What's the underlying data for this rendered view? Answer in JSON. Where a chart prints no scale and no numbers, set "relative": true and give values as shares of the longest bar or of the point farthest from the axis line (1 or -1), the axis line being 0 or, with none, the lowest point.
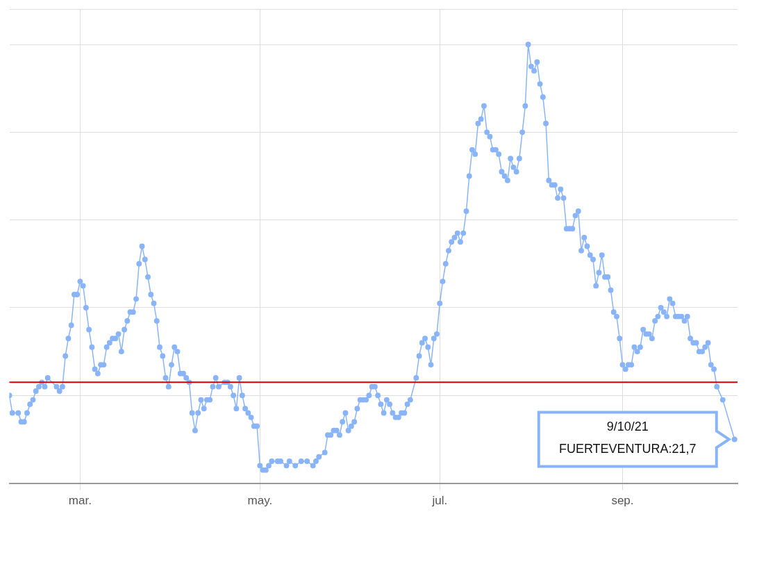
{
  "chart_data": {
    "type": "line",
    "relative": true,
    "grid": true,
    "marker": "circle",
    "line_style": "solid",
    "xlim": [
      "--02-05",
      "--10-10"
    ],
    "xticks": [
      {
        "value": "--03-01",
        "label": "mar."
      },
      {
        "value": "--05-01",
        "label": "may."
      },
      {
        "value": "--07-01",
        "label": "jul."
      },
      {
        "value": "--09-01",
        "label": "sep."
      }
    ],
    "ref_lines": [
      {
        "axis": "y",
        "value": 0.23,
        "color": "#cc0000"
      }
    ],
    "annotations": [
      "9/10/21",
      "FUERTEVENTURA:21,7"
    ],
    "series": [
      {
        "color": "#8ab4f8",
        "x": [
          "--02-05",
          "--02-06",
          "--02-08",
          "--02-09",
          "--02-10",
          "--02-11",
          "--02-12",
          "--02-13",
          "--02-14",
          "--02-15",
          "--02-16",
          "--02-17",
          "--02-18",
          "--02-21",
          "--02-22",
          "--02-23",
          "--02-24",
          "--02-25",
          "--02-26",
          "--02-27",
          "--02-28",
          "--03-01",
          "--03-02",
          "--03-03",
          "--03-04",
          "--03-05",
          "--03-06",
          "--03-07",
          "--03-08",
          "--03-09",
          "--03-10",
          "--03-11",
          "--03-12",
          "--03-13",
          "--03-14",
          "--03-15",
          "--03-16",
          "--03-17",
          "--03-18",
          "--03-19",
          "--03-20",
          "--03-21",
          "--03-22",
          "--03-23",
          "--03-24",
          "--03-25",
          "--03-26",
          "--03-27",
          "--03-28",
          "--03-29",
          "--03-30",
          "--03-31",
          "--04-01",
          "--04-02",
          "--04-03",
          "--04-04",
          "--04-05",
          "--04-06",
          "--04-07",
          "--04-08",
          "--04-09",
          "--04-10",
          "--04-11",
          "--04-12",
          "--04-13",
          "--04-14",
          "--04-15",
          "--04-16",
          "--04-17",
          "--04-19",
          "--04-20",
          "--04-21",
          "--04-22",
          "--04-23",
          "--04-24",
          "--04-25",
          "--04-26",
          "--04-27",
          "--04-28",
          "--04-29",
          "--04-30",
          "--05-01",
          "--05-02",
          "--05-03",
          "--05-04",
          "--05-05",
          "--05-07",
          "--05-08",
          "--05-10",
          "--05-11",
          "--05-13",
          "--05-15",
          "--05-17",
          "--05-19",
          "--05-20",
          "--05-21",
          "--05-23",
          "--05-24",
          "--05-25",
          "--05-26",
          "--05-27",
          "--05-28",
          "--05-29",
          "--05-30",
          "--05-31",
          "--06-01",
          "--06-02",
          "--06-03",
          "--06-04",
          "--06-05",
          "--06-06",
          "--06-07",
          "--06-08",
          "--06-09",
          "--06-10",
          "--06-11",
          "--06-12",
          "--06-13",
          "--06-14",
          "--06-15",
          "--06-16",
          "--06-17",
          "--06-18",
          "--06-19",
          "--06-20",
          "--06-21",
          "--06-23",
          "--06-24",
          "--06-25",
          "--06-26",
          "--06-27",
          "--06-28",
          "--06-29",
          "--06-30",
          "--07-01",
          "--07-02",
          "--07-03",
          "--07-04",
          "--07-05",
          "--07-06",
          "--07-07",
          "--07-08",
          "--07-09",
          "--07-10",
          "--07-11",
          "--07-12",
          "--07-13",
          "--07-14",
          "--07-15",
          "--07-16",
          "--07-17",
          "--07-18",
          "--07-19",
          "--07-20",
          "--07-21",
          "--07-22",
          "--07-23",
          "--07-24",
          "--07-25",
          "--07-26",
          "--07-27",
          "--07-28",
          "--07-29",
          "--07-30",
          "--07-31",
          "--08-01",
          "--08-02",
          "--08-03",
          "--08-04",
          "--08-05",
          "--08-06",
          "--08-07",
          "--08-08",
          "--08-09",
          "--08-10",
          "--08-11",
          "--08-12",
          "--08-13",
          "--08-14",
          "--08-15",
          "--08-16",
          "--08-17",
          "--08-18",
          "--08-19",
          "--08-20",
          "--08-21",
          "--08-22",
          "--08-23",
          "--08-24",
          "--08-25",
          "--08-26",
          "--08-27",
          "--08-28",
          "--08-29",
          "--08-30",
          "--08-31",
          "--09-01",
          "--09-02",
          "--09-03",
          "--09-04",
          "--09-05",
          "--09-06",
          "--09-07",
          "--09-08",
          "--09-09",
          "--09-10",
          "--09-11",
          "--09-12",
          "--09-13",
          "--09-14",
          "--09-15",
          "--09-16",
          "--09-17",
          "--09-18",
          "--09-19",
          "--09-20",
          "--09-21",
          "--09-22",
          "--09-23",
          "--09-24",
          "--09-25",
          "--09-26",
          "--09-27",
          "--09-28",
          "--09-29",
          "--09-30",
          "--10-01",
          "--10-02",
          "--10-03",
          "--10-05",
          "--10-09"
        ],
        "values": [
          0.2,
          0.16,
          0.16,
          0.14,
          0.14,
          0.16,
          0.18,
          0.19,
          0.21,
          0.22,
          0.23,
          0.22,
          0.24,
          0.22,
          0.21,
          0.22,
          0.29,
          0.33,
          0.36,
          0.43,
          0.43,
          0.46,
          0.45,
          0.4,
          0.35,
          0.31,
          0.26,
          0.25,
          0.27,
          0.27,
          0.31,
          0.32,
          0.33,
          0.33,
          0.34,
          0.3,
          0.35,
          0.37,
          0.39,
          0.39,
          0.42,
          0.5,
          0.54,
          0.51,
          0.47,
          0.43,
          0.41,
          0.37,
          0.31,
          0.29,
          0.24,
          0.22,
          0.27,
          0.31,
          0.3,
          0.25,
          0.25,
          0.24,
          0.23,
          0.16,
          0.12,
          0.16,
          0.19,
          0.17,
          0.19,
          0.19,
          0.22,
          0.24,
          0.22,
          0.23,
          0.23,
          0.22,
          0.2,
          0.17,
          0.24,
          0.2,
          0.17,
          0.16,
          0.15,
          0.13,
          0.13,
          0.04,
          0.03,
          0.03,
          0.04,
          0.05,
          0.05,
          0.05,
          0.04,
          0.05,
          0.04,
          0.05,
          0.05,
          0.04,
          0.05,
          0.06,
          0.07,
          0.11,
          0.11,
          0.12,
          0.12,
          0.11,
          0.14,
          0.16,
          0.12,
          0.13,
          0.14,
          0.17,
          0.19,
          0.19,
          0.19,
          0.2,
          0.22,
          0.22,
          0.2,
          0.18,
          0.16,
          0.19,
          0.18,
          0.16,
          0.15,
          0.15,
          0.16,
          0.16,
          0.18,
          0.19,
          0.24,
          0.29,
          0.32,
          0.33,
          0.31,
          0.27,
          0.33,
          0.34,
          0.41,
          0.46,
          0.5,
          0.53,
          0.55,
          0.56,
          0.57,
          0.55,
          0.57,
          0.62,
          0.7,
          0.76,
          0.75,
          0.82,
          0.83,
          0.86,
          0.8,
          0.79,
          0.76,
          0.76,
          0.75,
          0.71,
          0.7,
          0.69,
          0.74,
          0.72,
          0.71,
          0.74,
          0.8,
          0.86,
          1.0,
          0.95,
          0.94,
          0.96,
          0.91,
          0.88,
          0.82,
          0.69,
          0.68,
          0.68,
          0.65,
          0.67,
          0.65,
          0.58,
          0.58,
          0.58,
          0.61,
          0.62,
          0.53,
          0.56,
          0.54,
          0.52,
          0.51,
          0.45,
          0.48,
          0.52,
          0.47,
          0.47,
          0.44,
          0.39,
          0.38,
          0.33,
          0.27,
          0.26,
          0.27,
          0.27,
          0.31,
          0.3,
          0.31,
          0.35,
          0.34,
          0.34,
          0.33,
          0.37,
          0.38,
          0.4,
          0.39,
          0.38,
          0.42,
          0.41,
          0.38,
          0.38,
          0.38,
          0.37,
          0.38,
          0.33,
          0.32,
          0.32,
          0.3,
          0.3,
          0.31,
          0.32,
          0.27,
          0.26,
          0.22,
          0.19,
          0.1
        ]
      }
    ]
  }
}
